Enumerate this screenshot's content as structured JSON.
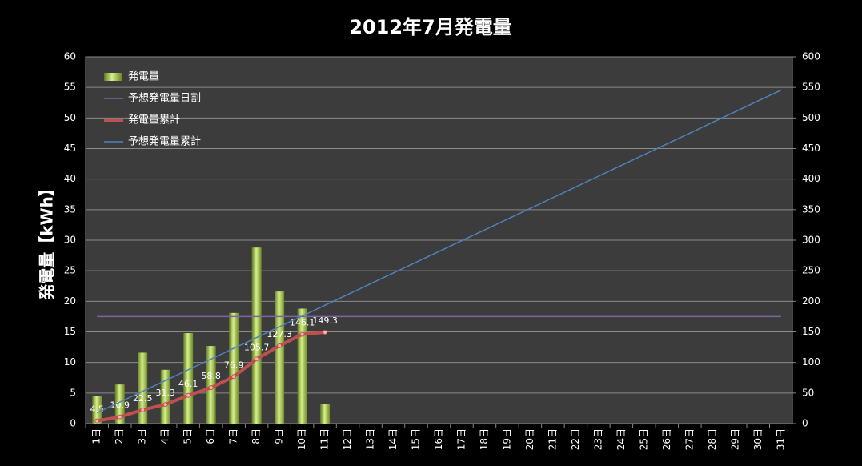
{
  "chart_data": {
    "type": "bar",
    "title": "2012年7月発電量",
    "y_label": "発電量【kWh】",
    "categories": [
      "1日",
      "2日",
      "3日",
      "4日",
      "5日",
      "6日",
      "7日",
      "8日",
      "9日",
      "10日",
      "11日",
      "12日",
      "13日",
      "14日",
      "15日",
      "16日",
      "17日",
      "18日",
      "19日",
      "20日",
      "21日",
      "22日",
      "23日",
      "24日",
      "25日",
      "26日",
      "27日",
      "28日",
      "29日",
      "30日",
      "31日"
    ],
    "series": [
      {
        "name": "発電量",
        "type": "bar",
        "color": "#9bbb59",
        "values": [
          4.5,
          6.4,
          11.6,
          8.8,
          14.8,
          12.7,
          18.1,
          28.8,
          21.6,
          18.8,
          3.2,
          null,
          null,
          null,
          null,
          null,
          null,
          null,
          null,
          null,
          null,
          null,
          null,
          null,
          null,
          null,
          null,
          null,
          null,
          null,
          null
        ]
      },
      {
        "name": "予想発電量日割",
        "type": "line",
        "color": "#8064a2",
        "values": [
          17.5,
          17.5,
          17.5,
          17.5,
          17.5,
          17.5,
          17.5,
          17.5,
          17.5,
          17.5,
          17.5,
          17.5,
          17.5,
          17.5,
          17.5,
          17.5,
          17.5,
          17.5,
          17.5,
          17.5,
          17.5,
          17.5,
          17.5,
          17.5,
          17.5,
          17.5,
          17.5,
          17.5,
          17.5,
          17.5,
          17.5
        ]
      },
      {
        "name": "発電量累計",
        "type": "line",
        "axis": "y2",
        "color": "#c0504d",
        "labels": true,
        "values": [
          4.5,
          10.9,
          22.5,
          31.3,
          46.1,
          58.8,
          76.9,
          105.7,
          127.3,
          146.1,
          149.3,
          null,
          null,
          null,
          null,
          null,
          null,
          null,
          null,
          null,
          null,
          null,
          null,
          null,
          null,
          null,
          null,
          null,
          null,
          null,
          null
        ]
      },
      {
        "name": "予想発電量累計",
        "type": "line",
        "axis": "y2",
        "color": "#4f81bd",
        "values": [
          17.6,
          35.2,
          52.8,
          70.4,
          88,
          105.6,
          123.2,
          140.8,
          158.4,
          176,
          193.6,
          211.2,
          228.8,
          246.4,
          264,
          281.6,
          299.2,
          316.8,
          334.4,
          352,
          369.6,
          387.2,
          404.8,
          422.4,
          440,
          457.6,
          475.2,
          492.8,
          510.4,
          528,
          545.6
        ]
      }
    ],
    "ylim": [
      0,
      60
    ],
    "yticks": [
      0,
      5,
      10,
      15,
      20,
      25,
      30,
      35,
      40,
      45,
      50,
      55,
      60
    ],
    "y2lim": [
      0,
      600
    ],
    "y2ticks": [
      0,
      50,
      100,
      150,
      200,
      250,
      300,
      350,
      400,
      450,
      500,
      550,
      600
    ],
    "grid": true,
    "legend": "top-left"
  }
}
